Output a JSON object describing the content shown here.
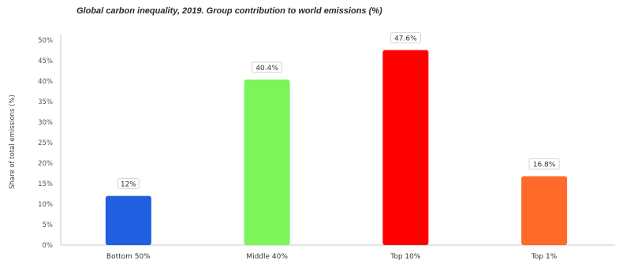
{
  "chart_data": {
    "type": "bar",
    "title": "Global carbon inequality, 2019. Group contribution to world emissions (%)",
    "xlabel": "",
    "ylabel": "Share of total emissions (%)",
    "categories": [
      "Bottom 50%",
      "Middle 40%",
      "Top 10%",
      "Top 1%"
    ],
    "values": [
      12,
      40.4,
      47.6,
      16.8
    ],
    "data_labels": [
      "12%",
      "40.4%",
      "47.6%",
      "16.8%"
    ],
    "colors": [
      "#1f5fe0",
      "#7cf55b",
      "#ff0000",
      "#ff6a2a"
    ],
    "yticks": [
      "0%",
      "5%",
      "10%",
      "15%",
      "20%",
      "25%",
      "30%",
      "35%",
      "40%",
      "45%",
      "50%"
    ],
    "ylim": [
      0,
      50
    ],
    "grid": false,
    "legend": "none"
  }
}
